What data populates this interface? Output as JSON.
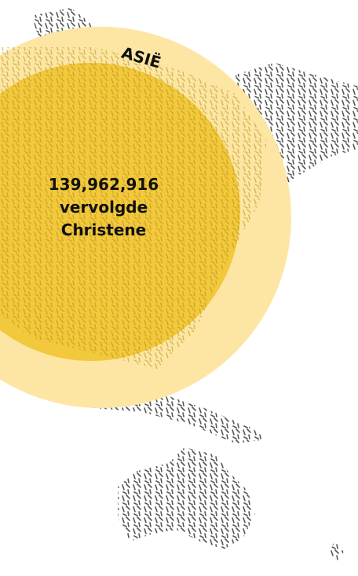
{
  "region": "ASIË",
  "count": "139,962,916",
  "caption": [
    "vervolgde",
    "Christene"
  ]
}
